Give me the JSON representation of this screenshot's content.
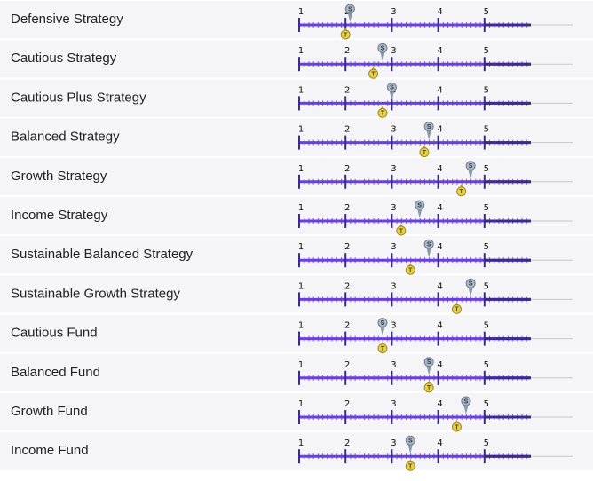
{
  "rows": [
    {
      "name": "Defensive Strategy",
      "s": 2.1,
      "t": 2.0
    },
    {
      "name": "Cautious Strategy",
      "s": 2.8,
      "t": 2.6
    },
    {
      "name": "Cautious Plus Strategy",
      "s": 3.0,
      "t": 2.8
    },
    {
      "name": "Balanced Strategy",
      "s": 3.8,
      "t": 3.7
    },
    {
      "name": "Growth Strategy",
      "s": 4.7,
      "t": 4.5
    },
    {
      "name": "Income Strategy",
      "s": 3.6,
      "t": 3.2
    },
    {
      "name": "Sustainable Balanced Strategy",
      "s": 3.8,
      "t": 3.4
    },
    {
      "name": "Sustainable Growth Strategy",
      "s": 4.7,
      "t": 4.4
    },
    {
      "name": "Cautious Fund",
      "s": 2.8,
      "t": 2.8
    },
    {
      "name": "Balanced Fund",
      "s": 3.8,
      "t": 3.8
    },
    {
      "name": "Growth Fund",
      "s": 4.6,
      "t": 4.4
    },
    {
      "name": "Income Fund",
      "s": 3.4,
      "t": 3.4
    }
  ],
  "scale": {
    "range": [
      1,
      6
    ],
    "ticks": [
      1,
      2,
      3,
      4,
      5
    ]
  },
  "markers": {
    "s": "S",
    "t": "T"
  }
}
